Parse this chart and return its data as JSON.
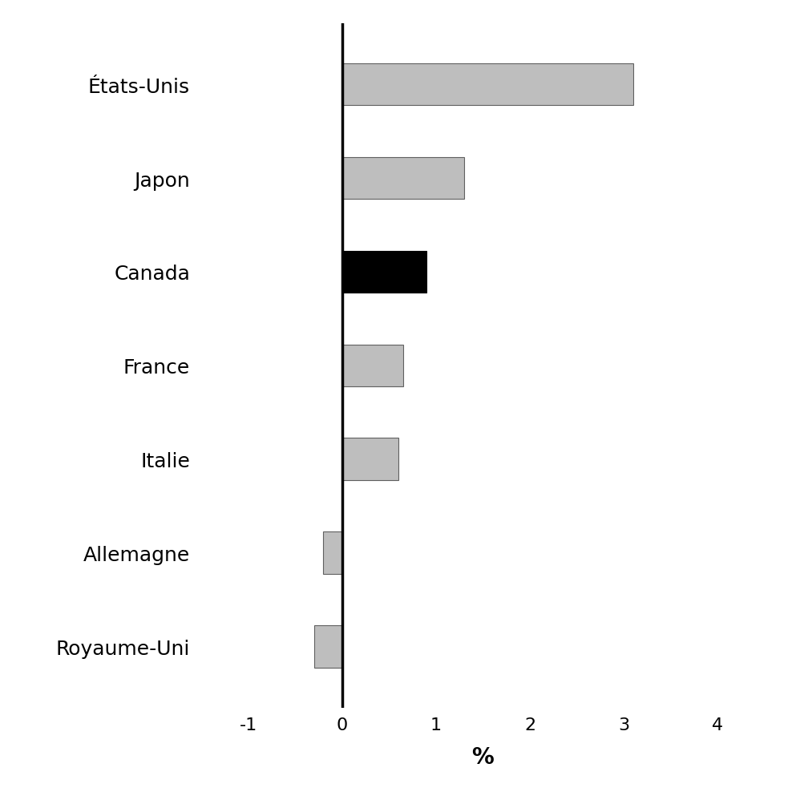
{
  "categories": [
    "États-Unis",
    "Japon",
    "Canada",
    "France",
    "Italie",
    "Allemagne",
    "Royaume-Uni"
  ],
  "values": [
    3.1,
    1.3,
    0.9,
    0.65,
    0.6,
    -0.2,
    -0.3
  ],
  "bar_colors": [
    "#bebebe",
    "#bebebe",
    "#000000",
    "#bebebe",
    "#bebebe",
    "#bebebe",
    "#bebebe"
  ],
  "bar_edgecolors": [
    "#606060",
    "#606060",
    "#000000",
    "#606060",
    "#606060",
    "#606060",
    "#606060"
  ],
  "xlabel": "%",
  "xlim": [
    -1.5,
    4.5
  ],
  "xticks": [
    -1,
    0,
    1,
    2,
    3,
    4
  ],
  "background_color": "#ffffff",
  "label_fontsize": 18,
  "tick_fontsize": 16,
  "xlabel_fontsize": 20,
  "bar_height": 0.45,
  "ylim_bottom": -0.65,
  "ylim_top": 6.65
}
